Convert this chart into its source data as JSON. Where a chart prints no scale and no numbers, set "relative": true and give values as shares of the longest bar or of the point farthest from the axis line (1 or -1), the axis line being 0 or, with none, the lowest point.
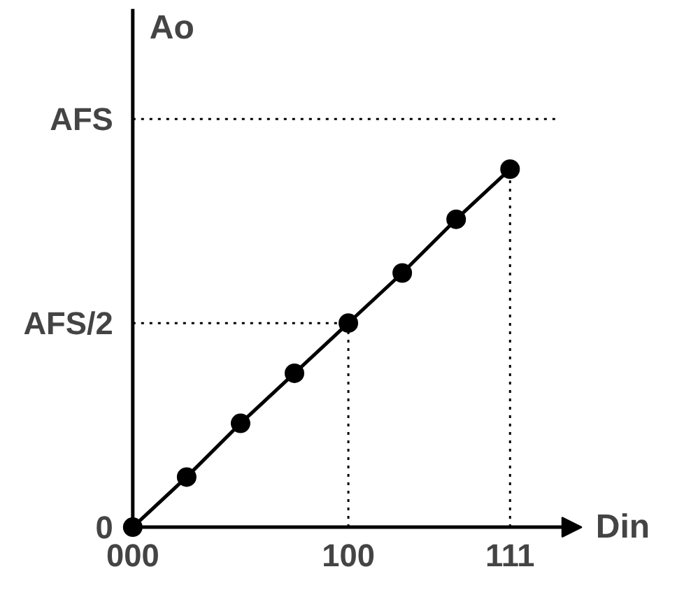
{
  "chart_data": {
    "type": "line",
    "xlabel": "Din",
    "ylabel": "Ao",
    "relative": true,
    "categories": [
      "000",
      null,
      null,
      null,
      "100",
      null,
      null,
      "111"
    ],
    "series": [
      {
        "color": "#000000",
        "values": [
          0,
          0.14,
          0.29,
          0.43,
          0.57,
          0.71,
          0.86,
          1
        ]
      }
    ],
    "ref_lines": [
      {
        "axis": "y",
        "value": 1.14,
        "label": "AFS",
        "line_style": "dotted"
      },
      {
        "axis": "y",
        "value": 0.57,
        "label": "AFS/2",
        "line_style": "dotted"
      },
      {
        "axis": "x",
        "value": "100",
        "line_style": "dotted"
      },
      {
        "axis": "x",
        "value": "111",
        "line_style": "dotted"
      }
    ],
    "annotations": [
      {
        "text": "0",
        "x": "000",
        "y": 0
      }
    ],
    "marker": "circle",
    "line_style": "solid",
    "grid": false
  }
}
